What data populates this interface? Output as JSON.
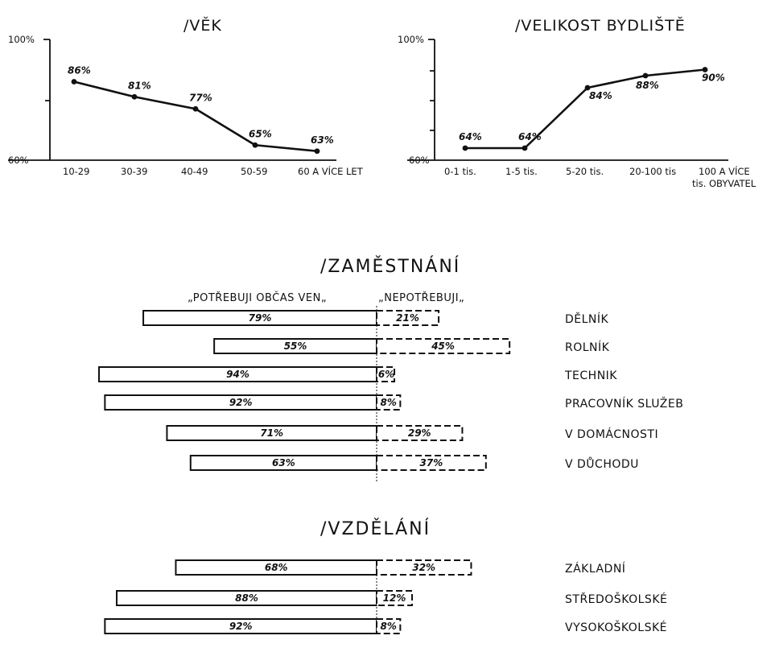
{
  "chart_data": [
    {
      "type": "line",
      "title": "/VĚK",
      "categories": [
        "10-29",
        "30-39",
        "40-49",
        "50-59",
        "60 A VÍCE LET"
      ],
      "values": [
        86,
        81,
        77,
        65,
        63
      ],
      "value_labels": [
        "86%",
        "81%",
        "77%",
        "65%",
        "63%"
      ],
      "ylim": [
        60,
        100
      ],
      "y_tick_labels": [
        "100%",
        "60%"
      ]
    },
    {
      "type": "line",
      "title": "/VELIKOST BYDLIŠTĚ",
      "categories": [
        "0-1 tis.",
        "1-5 tis.",
        "5-20 tis.",
        "20-100 tis",
        "100 A VÍCE"
      ],
      "category_note": "tis. OBYVATEL",
      "values": [
        64,
        64,
        84,
        88,
        90
      ],
      "value_labels": [
        "64%",
        "64%",
        "84%",
        "88%",
        "90%"
      ],
      "ylim": [
        60,
        100
      ],
      "y_tick_labels": [
        "100%",
        "60%"
      ]
    },
    {
      "type": "bar",
      "title": "/ZAMĚSTNÁNÍ",
      "legend_left": "„POTŘEBUJI OBČAS VEN„",
      "legend_right": "„NEPOTŘEBUJI„",
      "categories": [
        "DĚLNÍK",
        "ROLNÍK",
        "TECHNIK",
        "PRACOVNÍK SLUŽEB",
        "V DOMÁCNOSTI",
        "V DŮCHODU"
      ],
      "series": [
        {
          "name": "„POTŘEBUJI OBČAS VEN„",
          "values": [
            79,
            55,
            94,
            92,
            71,
            63
          ],
          "labels": [
            "79%",
            "55%",
            "94%",
            "92%",
            "71%",
            "63%"
          ]
        },
        {
          "name": "„NEPOTŘEBUJI„",
          "values": [
            21,
            45,
            6,
            8,
            29,
            37
          ],
          "labels": [
            "21%",
            "45%",
            "6%",
            "8%",
            "29%",
            "37%"
          ]
        }
      ]
    },
    {
      "type": "bar",
      "title": "/VZDĚLÁNÍ",
      "categories": [
        "ZÁKLADNÍ",
        "STŘEDOŠKOLSKÉ",
        "VYSOKOŠKOLSKÉ"
      ],
      "series": [
        {
          "values": [
            68,
            88,
            92
          ],
          "labels": [
            "68%",
            "88%",
            "92%"
          ]
        },
        {
          "values": [
            32,
            12,
            8
          ],
          "labels": [
            "32%",
            "12%",
            "8%"
          ]
        }
      ]
    }
  ]
}
